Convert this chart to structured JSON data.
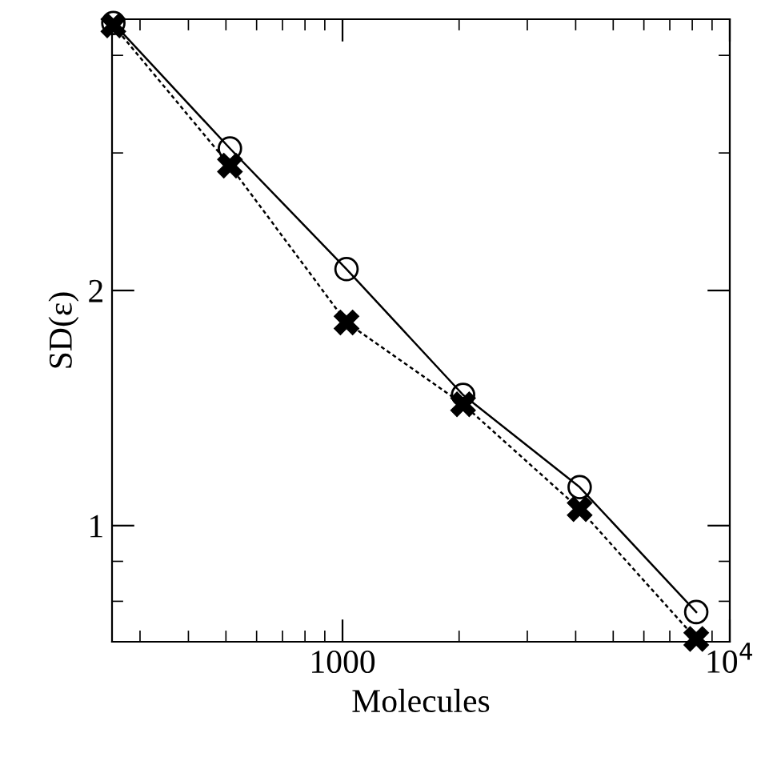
{
  "chart_data": {
    "type": "line",
    "xlabel": "Molecules",
    "ylabel": "SD(ε)",
    "log": "xy",
    "x": [
      256,
      512,
      1024,
      2048,
      4096,
      8192
    ],
    "series": [
      {
        "color": "#000000",
        "marker": "circle",
        "line_style": "solid",
        "values": [
          4.4,
          3.04,
          2.13,
          1.47,
          1.12,
          0.775
        ]
      },
      {
        "color": "#000000",
        "marker": "cross",
        "line_style": "dotted",
        "values": [
          4.37,
          2.89,
          1.82,
          1.43,
          1.05,
          0.716
        ]
      }
    ],
    "xlim": [
      254,
      10000
    ],
    "ylim": [
      0.71,
      4.45
    ],
    "xticks": [
      {
        "value": 300,
        "label": null
      },
      {
        "value": 400,
        "label": null
      },
      {
        "value": 500,
        "label": null
      },
      {
        "value": 600,
        "label": null
      },
      {
        "value": 700,
        "label": null
      },
      {
        "value": 800,
        "label": null
      },
      {
        "value": 900,
        "label": null
      },
      1000,
      {
        "value": 2000,
        "label": null
      },
      {
        "value": 3000,
        "label": null
      },
      {
        "value": 4000,
        "label": null
      },
      {
        "value": 5000,
        "label": null
      },
      {
        "value": 6000,
        "label": null
      },
      {
        "value": 7000,
        "label": null
      },
      {
        "value": 8000,
        "label": null
      },
      {
        "value": 9000,
        "label": null
      },
      {
        "value": 10000,
        "label": "10$^{4}$"
      }
    ],
    "yticks": [
      {
        "value": 0.8,
        "label": null
      },
      {
        "value": 0.9,
        "label": null
      },
      1,
      2,
      {
        "value": 3,
        "label": null
      },
      {
        "value": 4,
        "label": null
      }
    ],
    "grid": false,
    "legend": false
  }
}
